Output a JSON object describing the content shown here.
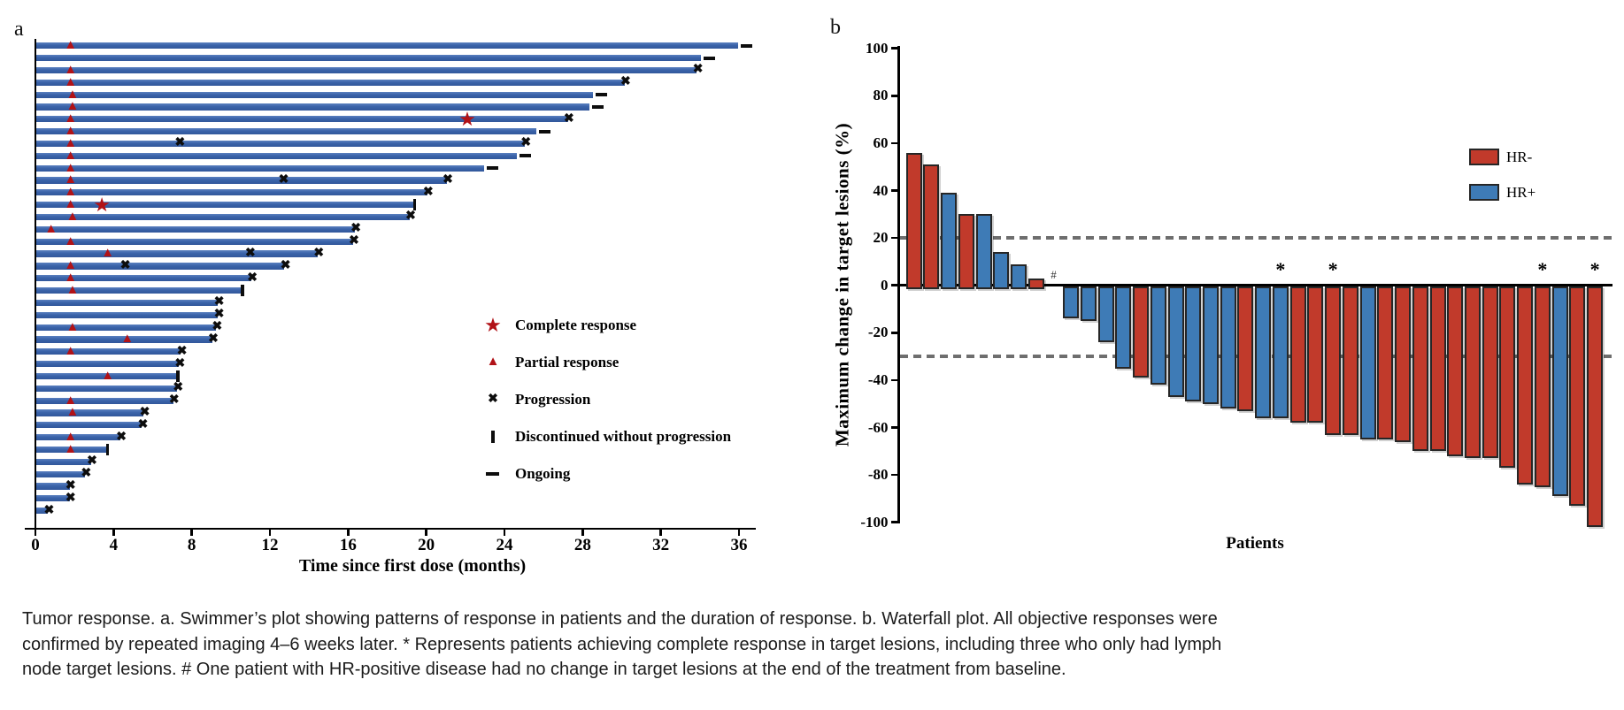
{
  "caption": {
    "lines": [
      "Tumor response. a. Swimmer’s plot showing patterns of response in patients and the duration of response. b. Waterfall plot. All objective responses were",
      "confirmed by repeated imaging 4–6 weeks later. * Represents patients achieving complete response in target lesions, including three who only had lymph",
      "node target lesions. # One patient with HR-positive disease had no change in target lesions at the end of the treatment from baseline."
    ]
  },
  "colors": {
    "swimmer_bar": "#3a63a9",
    "response_marker": "#b11217",
    "event_marker": "#0d0d0d",
    "hr_negative": "#c13a2b",
    "hr_positive": "#3e7bb6",
    "bar_border": "#262626",
    "dashed_reference": "#6e6e6e"
  },
  "chart_data": [
    {
      "type": "bar",
      "variant": "swimmer",
      "panel_label": "a",
      "xlabel": "Time since first dose (months)",
      "x_ticks": [
        0,
        4,
        8,
        12,
        16,
        20,
        24,
        28,
        32,
        36
      ],
      "xlim": [
        0,
        38
      ],
      "grid": false,
      "legend_position": "right-middle",
      "legend": [
        {
          "marker": "star",
          "label": "Complete response"
        },
        {
          "marker": "triangle",
          "label": "Partial response"
        },
        {
          "marker": "x",
          "label": "Progression"
        },
        {
          "marker": "vbar",
          "label": "Discontinued without progression"
        },
        {
          "marker": "dash",
          "label": "Ongoing"
        }
      ],
      "patients": [
        {
          "duration": 35.9,
          "events": [
            {
              "type": "partial_response",
              "month": 1.8
            },
            {
              "type": "ongoing"
            }
          ]
        },
        {
          "duration": 34.0,
          "events": [
            {
              "type": "ongoing"
            }
          ]
        },
        {
          "duration": 33.8,
          "events": [
            {
              "type": "partial_response",
              "month": 1.8
            },
            {
              "type": "progression",
              "month": 33.9
            }
          ]
        },
        {
          "duration": 30.1,
          "events": [
            {
              "type": "partial_response",
              "month": 1.8
            },
            {
              "type": "progression",
              "month": 30.2
            }
          ]
        },
        {
          "duration": 28.5,
          "events": [
            {
              "type": "partial_response",
              "month": 1.9
            },
            {
              "type": "ongoing"
            }
          ]
        },
        {
          "duration": 28.3,
          "events": [
            {
              "type": "partial_response",
              "month": 1.9
            },
            {
              "type": "ongoing"
            }
          ]
        },
        {
          "duration": 27.2,
          "events": [
            {
              "type": "partial_response",
              "month": 1.8
            },
            {
              "type": "complete_response",
              "month": 22.1
            },
            {
              "type": "progression",
              "month": 27.3
            }
          ]
        },
        {
          "duration": 25.6,
          "events": [
            {
              "type": "partial_response",
              "month": 1.8
            },
            {
              "type": "ongoing"
            }
          ]
        },
        {
          "duration": 25.0,
          "events": [
            {
              "type": "partial_response",
              "month": 1.8
            },
            {
              "type": "progression",
              "month": 7.4
            },
            {
              "type": "progression",
              "month": 25.1
            }
          ]
        },
        {
          "duration": 24.6,
          "events": [
            {
              "type": "partial_response",
              "month": 1.8
            },
            {
              "type": "ongoing"
            }
          ]
        },
        {
          "duration": 22.9,
          "events": [
            {
              "type": "partial_response",
              "month": 1.8
            },
            {
              "type": "ongoing"
            }
          ]
        },
        {
          "duration": 21.0,
          "events": [
            {
              "type": "partial_response",
              "month": 1.8
            },
            {
              "type": "progression",
              "month": 12.7
            },
            {
              "type": "progression",
              "month": 21.1
            }
          ]
        },
        {
          "duration": 20.0,
          "events": [
            {
              "type": "partial_response",
              "month": 1.8
            },
            {
              "type": "progression",
              "month": 20.1
            }
          ]
        },
        {
          "duration": 19.3,
          "events": [
            {
              "type": "partial_response",
              "month": 1.8
            },
            {
              "type": "complete_response",
              "month": 3.4
            },
            {
              "type": "discontinued",
              "month": 19.4
            }
          ]
        },
        {
          "duration": 19.1,
          "events": [
            {
              "type": "partial_response",
              "month": 1.9
            },
            {
              "type": "progression",
              "month": 19.2
            }
          ]
        },
        {
          "duration": 16.3,
          "events": [
            {
              "type": "partial_response",
              "month": 0.8
            },
            {
              "type": "progression",
              "month": 16.4
            }
          ]
        },
        {
          "duration": 16.2,
          "events": [
            {
              "type": "partial_response",
              "month": 1.8
            },
            {
              "type": "progression",
              "month": 16.3
            }
          ]
        },
        {
          "duration": 14.4,
          "events": [
            {
              "type": "partial_response",
              "month": 3.7
            },
            {
              "type": "progression",
              "month": 11.0
            },
            {
              "type": "progression",
              "month": 14.5
            }
          ]
        },
        {
          "duration": 12.7,
          "events": [
            {
              "type": "partial_response",
              "month": 1.8
            },
            {
              "type": "progression",
              "month": 4.6
            },
            {
              "type": "progression",
              "month": 12.8
            }
          ]
        },
        {
          "duration": 11.0,
          "events": [
            {
              "type": "partial_response",
              "month": 1.8
            },
            {
              "type": "progression",
              "month": 11.1
            }
          ]
        },
        {
          "duration": 10.5,
          "events": [
            {
              "type": "partial_response",
              "month": 1.9
            },
            {
              "type": "discontinued",
              "month": 10.6
            }
          ]
        },
        {
          "duration": 9.3,
          "events": [
            {
              "type": "progression",
              "month": 9.4
            }
          ]
        },
        {
          "duration": 9.3,
          "events": [
            {
              "type": "progression",
              "month": 9.4
            }
          ]
        },
        {
          "duration": 9.2,
          "events": [
            {
              "type": "partial_response",
              "month": 1.9
            },
            {
              "type": "progression",
              "month": 9.3
            }
          ]
        },
        {
          "duration": 9.0,
          "events": [
            {
              "type": "partial_response",
              "month": 4.7
            },
            {
              "type": "progression",
              "month": 9.1
            }
          ]
        },
        {
          "duration": 7.4,
          "events": [
            {
              "type": "partial_response",
              "month": 1.8
            },
            {
              "type": "progression",
              "month": 7.5
            }
          ]
        },
        {
          "duration": 7.3,
          "events": [
            {
              "type": "progression",
              "month": 7.4
            }
          ]
        },
        {
          "duration": 7.2,
          "events": [
            {
              "type": "partial_response",
              "month": 3.7
            },
            {
              "type": "discontinued",
              "month": 7.3
            }
          ]
        },
        {
          "duration": 7.2,
          "events": [
            {
              "type": "progression",
              "month": 7.3
            }
          ]
        },
        {
          "duration": 7.0,
          "events": [
            {
              "type": "partial_response",
              "month": 1.8
            },
            {
              "type": "progression",
              "month": 7.1
            }
          ]
        },
        {
          "duration": 5.5,
          "events": [
            {
              "type": "partial_response",
              "month": 1.9
            },
            {
              "type": "progression",
              "month": 5.6
            }
          ]
        },
        {
          "duration": 5.4,
          "events": [
            {
              "type": "progression",
              "month": 5.5
            }
          ]
        },
        {
          "duration": 4.3,
          "events": [
            {
              "type": "partial_response",
              "month": 1.8
            },
            {
              "type": "progression",
              "month": 4.4
            }
          ]
        },
        {
          "duration": 3.6,
          "events": [
            {
              "type": "partial_response",
              "month": 1.8
            },
            {
              "type": "discontinued",
              "month": 3.7
            }
          ]
        },
        {
          "duration": 2.8,
          "events": [
            {
              "type": "progression",
              "month": 2.9
            }
          ]
        },
        {
          "duration": 2.5,
          "events": [
            {
              "type": "progression",
              "month": 2.6
            }
          ]
        },
        {
          "duration": 1.7,
          "events": [
            {
              "type": "progression",
              "month": 1.8
            }
          ]
        },
        {
          "duration": 1.7,
          "events": [
            {
              "type": "progression",
              "month": 1.8
            }
          ]
        },
        {
          "duration": 0.6,
          "events": [
            {
              "type": "progression",
              "month": 0.7
            }
          ]
        }
      ]
    },
    {
      "type": "bar",
      "variant": "waterfall",
      "panel_label": "b",
      "ylabel": "Maximum change in target lesions (%)",
      "xlabel": "Patients",
      "ylim": [
        -100,
        100
      ],
      "y_ticks": [
        100,
        80,
        60,
        40,
        20,
        0,
        -20,
        -40,
        -60,
        -80,
        -100
      ],
      "reference_lines": [
        20,
        -30
      ],
      "grid": false,
      "legend_position": "top-right",
      "legend": [
        {
          "label": "HR-",
          "color": "#c13a2b"
        },
        {
          "label": "HR+",
          "color": "#3e7bb6"
        }
      ],
      "bars": [
        {
          "value": 56,
          "group": "HR-"
        },
        {
          "value": 51,
          "group": "HR-"
        },
        {
          "value": 39,
          "group": "HR+"
        },
        {
          "value": 30,
          "group": "HR-"
        },
        {
          "value": 30,
          "group": "HR+"
        },
        {
          "value": 14,
          "group": "HR+"
        },
        {
          "value": 9,
          "group": "HR+"
        },
        {
          "value": 3,
          "group": "HR-"
        },
        {
          "value": 0,
          "group": "HR+",
          "annotation": "#"
        },
        {
          "value": -12,
          "group": "HR+"
        },
        {
          "value": -13,
          "group": "HR+"
        },
        {
          "value": -22,
          "group": "HR+"
        },
        {
          "value": -33,
          "group": "HR+"
        },
        {
          "value": -37,
          "group": "HR-"
        },
        {
          "value": -40,
          "group": "HR+"
        },
        {
          "value": -45,
          "group": "HR+"
        },
        {
          "value": -47,
          "group": "HR+"
        },
        {
          "value": -48,
          "group": "HR+"
        },
        {
          "value": -50,
          "group": "HR+"
        },
        {
          "value": -51,
          "group": "HR-"
        },
        {
          "value": -54,
          "group": "HR+"
        },
        {
          "value": -54,
          "group": "HR+",
          "annotation": "*"
        },
        {
          "value": -56,
          "group": "HR-"
        },
        {
          "value": -56,
          "group": "HR-"
        },
        {
          "value": -61,
          "group": "HR-",
          "annotation": "*"
        },
        {
          "value": -61,
          "group": "HR-"
        },
        {
          "value": -63,
          "group": "HR+"
        },
        {
          "value": -63,
          "group": "HR-"
        },
        {
          "value": -64,
          "group": "HR-"
        },
        {
          "value": -68,
          "group": "HR-"
        },
        {
          "value": -68,
          "group": "HR-"
        },
        {
          "value": -70,
          "group": "HR-"
        },
        {
          "value": -71,
          "group": "HR-"
        },
        {
          "value": -71,
          "group": "HR-"
        },
        {
          "value": -75,
          "group": "HR-"
        },
        {
          "value": -82,
          "group": "HR-"
        },
        {
          "value": -83,
          "group": "HR-",
          "annotation": "*"
        },
        {
          "value": -87,
          "group": "HR+"
        },
        {
          "value": -91,
          "group": "HR-"
        },
        {
          "value": -100,
          "group": "HR-",
          "annotation": "*"
        }
      ]
    }
  ]
}
